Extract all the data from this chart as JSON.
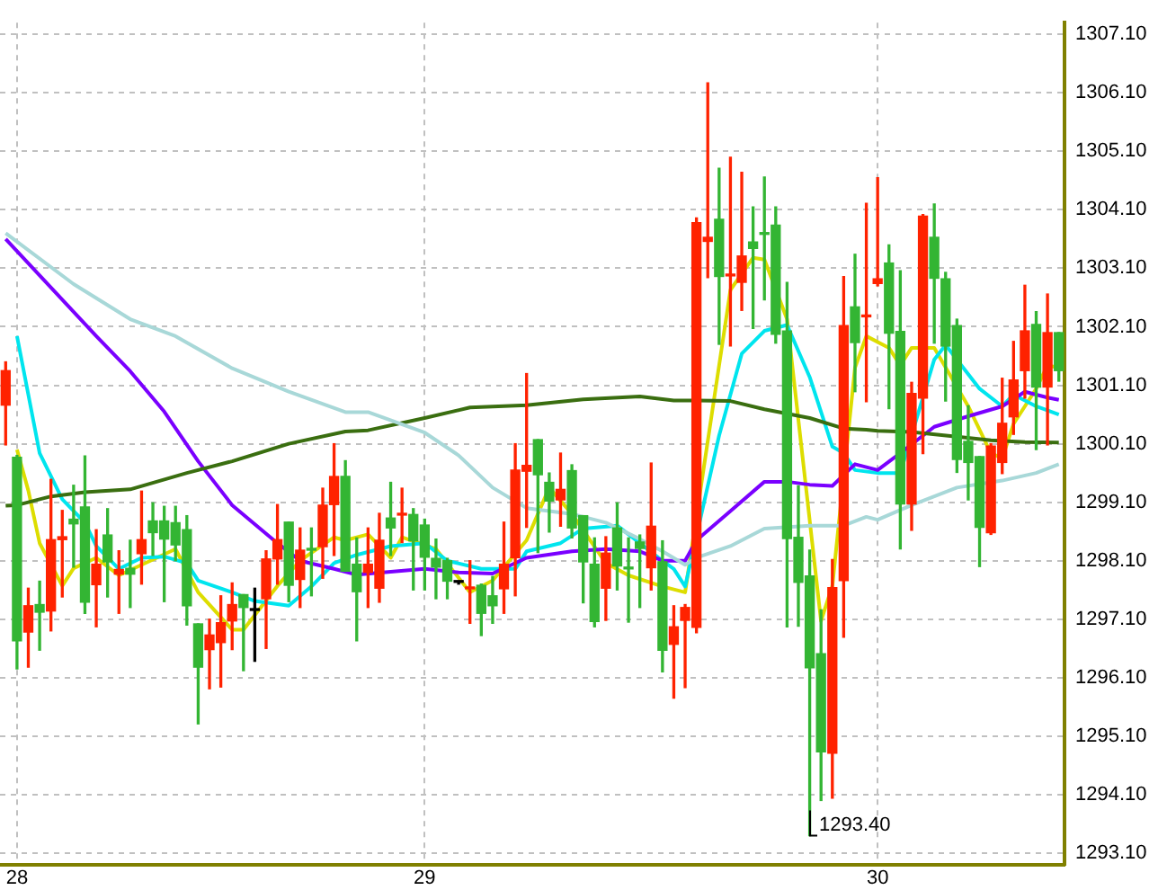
{
  "chart_data": {
    "type": "candlestick",
    "categories": [
      null,
      "28",
      null,
      null,
      null,
      null,
      null,
      null,
      null,
      null,
      null,
      null,
      null,
      null,
      null,
      null,
      null,
      null,
      null,
      null,
      null,
      null,
      null,
      null,
      null,
      null,
      null,
      null,
      null,
      null,
      null,
      null,
      null,
      null,
      null,
      null,
      null,
      "29",
      null,
      null,
      null,
      null,
      null,
      null,
      null,
      null,
      null,
      null,
      null,
      null,
      null,
      null,
      null,
      null,
      null,
      null,
      null,
      null,
      null,
      null,
      null,
      null,
      null,
      null,
      null,
      null,
      null,
      null,
      null,
      null,
      null,
      null,
      null,
      null,
      null,
      null,
      null,
      "30",
      null,
      null,
      null,
      null,
      null,
      null,
      null,
      null,
      null,
      null,
      null,
      null,
      null,
      null,
      null,
      null
    ],
    "ohlc": [
      [
        1300.76,
        1301.5,
        1300.08,
        1301.35
      ],
      [
        1299.87,
        1299.9,
        1296.25,
        1296.73
      ],
      [
        1296.88,
        1297.63,
        1296.28,
        1297.33
      ],
      [
        1297.35,
        1297.75,
        1296.57,
        1297.22
      ],
      [
        1297.24,
        1299.49,
        1296.9,
        1298.46
      ],
      [
        1298.46,
        1298.96,
        1297.48,
        1298.51
      ],
      [
        1298.81,
        1299.39,
        1297.99,
        1298.73
      ],
      [
        1299.02,
        1299.89,
        1297.2,
        1297.39
      ],
      [
        1297.69,
        1298.63,
        1296.97,
        1298.04
      ],
      [
        1298.54,
        1298.99,
        1297.48,
        1298.08
      ],
      [
        1297.87,
        1298.27,
        1297.2,
        1297.95
      ],
      [
        1297.97,
        1298.45,
        1297.3,
        1297.87
      ],
      [
        1298.22,
        1299.29,
        1297.7,
        1298.46
      ],
      [
        1298.78,
        1299.09,
        1298.19,
        1298.58
      ],
      [
        1298.78,
        1299.03,
        1297.4,
        1298.47
      ],
      [
        1298.75,
        1299.03,
        1298.1,
        1298.37
      ],
      [
        1298.63,
        1298.87,
        1297.0,
        1297.33
      ],
      [
        1297.02,
        1297.02,
        1295.31,
        1296.28
      ],
      [
        1296.58,
        1297.1,
        1295.91,
        1296.83
      ],
      [
        1296.7,
        1297.5,
        1295.94,
        1297.04
      ],
      [
        1297.07,
        1297.72,
        1296.58,
        1297.35
      ],
      [
        1297.52,
        1297.52,
        1296.22,
        1297.3
      ],
      [
        1297.25,
        1297.63,
        1296.38,
        1297.25
      ],
      [
        1297.45,
        1298.27,
        1296.6,
        1298.13
      ],
      [
        1298.13,
        1299.06,
        1297.7,
        1298.46
      ],
      [
        1298.76,
        1298.76,
        1297.4,
        1297.68
      ],
      [
        1297.78,
        1298.66,
        1297.3,
        1298.28
      ],
      [
        1298.3,
        1298.66,
        1297.5,
        1298.28
      ],
      [
        1298.34,
        1299.34,
        1297.8,
        1299.05
      ],
      [
        1299.06,
        1300.1,
        1298.19,
        1299.54
      ],
      [
        1299.54,
        1299.81,
        1297.92,
        1297.92
      ],
      [
        1298.04,
        1298.49,
        1296.73,
        1297.57
      ],
      [
        1297.9,
        1298.66,
        1297.3,
        1298.04
      ],
      [
        1297.63,
        1298.91,
        1297.39,
        1298.45
      ],
      [
        1298.83,
        1299.44,
        1298.19,
        1298.66
      ],
      [
        1298.88,
        1299.34,
        1298.41,
        1298.9
      ],
      [
        1298.89,
        1298.99,
        1297.6,
        1298.44
      ],
      [
        1298.71,
        1298.81,
        1297.6,
        1298.16
      ],
      [
        1298.14,
        1298.47,
        1297.45,
        1297.99
      ],
      [
        1298.1,
        1298.14,
        1297.45,
        1297.75
      ],
      [
        1297.73,
        1297.75,
        1297.7,
        1297.73
      ],
      [
        1297.62,
        1298.1,
        1297.03,
        1297.64
      ],
      [
        1297.68,
        1297.7,
        1296.82,
        1297.2
      ],
      [
        1297.5,
        1297.83,
        1297.03,
        1297.33
      ],
      [
        1297.62,
        1298.76,
        1297.2,
        1298.04
      ],
      [
        1298.15,
        1300.1,
        1297.5,
        1299.65
      ],
      [
        1299.63,
        1301.3,
        1298.67,
        1299.73
      ],
      [
        1300.17,
        1300.17,
        1298.24,
        1299.57
      ],
      [
        1299.44,
        1299.6,
        1298.59,
        1299.12
      ],
      [
        1299.14,
        1299.94,
        1298.69,
        1299.32
      ],
      [
        1299.64,
        1299.74,
        1298.49,
        1298.66
      ],
      [
        1298.87,
        1298.87,
        1297.38,
        1298.08
      ],
      [
        1298.04,
        1298.49,
        1296.97,
        1297.06
      ],
      [
        1297.63,
        1298.51,
        1297.08,
        1298.23
      ],
      [
        1298.66,
        1299.09,
        1297.6,
        1298.01
      ],
      [
        1297.97,
        1298.49,
        1297.05,
        1297.96
      ],
      [
        1298.42,
        1298.54,
        1297.3,
        1298.31
      ],
      [
        1297.98,
        1299.77,
        1297.6,
        1298.69
      ],
      [
        1298.08,
        1298.44,
        1296.2,
        1296.57
      ],
      [
        1296.67,
        1297.33,
        1295.75,
        1296.97
      ],
      [
        1297.08,
        1297.35,
        1295.93,
        1297.3
      ],
      [
        1296.96,
        1303.96,
        1296.87,
        1303.88
      ],
      [
        1303.56,
        1306.27,
        1302.94,
        1303.63
      ],
      [
        1303.94,
        1304.81,
        1301.8,
        1302.96
      ],
      [
        1302.97,
        1305.0,
        1301.77,
        1302.99
      ],
      [
        1302.86,
        1304.74,
        1302.38,
        1303.31
      ],
      [
        1303.55,
        1304.15,
        1302.07,
        1303.44
      ],
      [
        1303.7,
        1304.66,
        1302.56,
        1303.68
      ],
      [
        1303.84,
        1304.15,
        1301.82,
        1301.97
      ],
      [
        1302.03,
        1302.86,
        1296.97,
        1298.48
      ],
      [
        1298.5,
        1299.38,
        1296.98,
        1297.73
      ],
      [
        1297.84,
        1298.28,
        1293.4,
        1296.27
      ],
      [
        1296.51,
        1297.26,
        1294.0,
        1294.83
      ],
      [
        1294.81,
        1298.12,
        1294.04,
        1297.64
      ],
      [
        1297.76,
        1302.96,
        1296.79,
        1302.12
      ],
      [
        1302.44,
        1303.34,
        1300.99,
        1301.83
      ],
      [
        1302.27,
        1304.21,
        1300.82,
        1302.29
      ],
      [
        1302.84,
        1304.65,
        1302.8,
        1302.92
      ],
      [
        1303.19,
        1303.5,
        1300.7,
        1301.99
      ],
      [
        1302.02,
        1303.06,
        1298.3,
        1299.07
      ],
      [
        1299.07,
        1301.15,
        1298.62,
        1300.96
      ],
      [
        1300.88,
        1304.02,
        1299.93,
        1303.99
      ],
      [
        1303.63,
        1304.2,
        1301.82,
        1302.93
      ],
      [
        1302.92,
        1303.03,
        1300.83,
        1301.77
      ],
      [
        1302.12,
        1302.23,
        1299.61,
        1299.83
      ],
      [
        1300.14,
        1300.75,
        1299.14,
        1299.78
      ],
      [
        1299.88,
        1299.88,
        1298.0,
        1298.67
      ],
      [
        1298.58,
        1300.1,
        1298.55,
        1300.06
      ],
      [
        1299.78,
        1301.22,
        1299.59,
        1300.45
      ],
      [
        1300.56,
        1301.85,
        1300.26,
        1301.19
      ],
      [
        1301.35,
        1302.81,
        1300.88,
        1302.03
      ],
      [
        1302.14,
        1302.36,
        1300.0,
        1301.07
      ],
      [
        1301.07,
        1302.66,
        1300.08,
        1302.0
      ],
      [
        1302.0,
        1302.0,
        1301.17,
        1301.35
      ]
    ],
    "colors": [
      "#ff2200",
      "#33b533",
      "#ff2200",
      "#33b533",
      "#ff2200",
      "#ff2200",
      "#33b533",
      "#33b533",
      "#ff2200",
      "#33b533",
      "#ff2200",
      "#33b533",
      "#ff2200",
      "#33b533",
      "#33b533",
      "#33b533",
      "#33b533",
      "#33b533",
      "#ff2200",
      "#ff2200",
      "#ff2200",
      "#33b533",
      "#000000",
      "#ff2200",
      "#ff2200",
      "#33b533",
      "#ff2200",
      "#33b533",
      "#ff2200",
      "#ff2200",
      "#33b533",
      "#33b533",
      "#ff2200",
      "#ff2200",
      "#33b533",
      "#ff2200",
      "#33b533",
      "#33b533",
      "#33b533",
      "#33b533",
      "#000000",
      "#ff2200",
      "#33b533",
      "#33b533",
      "#ff2200",
      "#ff2200",
      "#ff2200",
      "#33b533",
      "#33b533",
      "#ff2200",
      "#33b533",
      "#33b533",
      "#33b533",
      "#ff2200",
      "#33b533",
      "#33b533",
      "#33b533",
      "#ff2200",
      "#33b533",
      "#ff2200",
      "#ff2200",
      "#ff2200",
      "#ff2200",
      "#33b533",
      "#ff2200",
      "#ff2200",
      "#33b533",
      "#33b533",
      "#33b533",
      "#33b533",
      "#33b533",
      "#33b533",
      "#33b533",
      "#ff2200",
      "#ff2200",
      "#33b533",
      "#ff2200",
      "#ff2200",
      "#33b533",
      "#33b533",
      "#ff2200",
      "#ff2200",
      "#33b533",
      "#33b533",
      "#33b533",
      "#33b533",
      "#33b533",
      "#ff2200",
      "#ff2200",
      "#ff2200",
      "#ff2200",
      "#33b533",
      "#ff2200",
      "#33b533"
    ],
    "series": [
      {
        "type": "line",
        "color": "#a8d8d8",
        "values": [
          1303.7,
          null,
          null,
          null,
          null,
          null,
          1302.83,
          null,
          null,
          null,
          null,
          1302.23,
          null,
          null,
          null,
          1301.94,
          null,
          null,
          null,
          null,
          1301.39,
          null,
          null,
          null,
          null,
          1300.99,
          null,
          null,
          null,
          null,
          1300.64,
          null,
          1300.64,
          null,
          null,
          null,
          null,
          1300.29,
          null,
          null,
          1299.9,
          null,
          null,
          1299.35,
          null,
          null,
          1299.0,
          null,
          null,
          null,
          1298.9,
          null,
          null,
          1298.75,
          null,
          null,
          1298.47,
          null,
          1298.26,
          null,
          1298.03,
          1298.15,
          null,
          null,
          1298.35,
          null,
          null,
          1298.65,
          null,
          null,
          null,
          1298.7,
          null,
          null,
          1298.7,
          null,
          1298.85,
          1298.8,
          null,
          null,
          1299.05,
          null,
          null,
          null,
          1299.35,
          null,
          null,
          null,
          1299.47,
          null,
          null,
          1299.6,
          null,
          1299.75
        ]
      },
      {
        "type": "line",
        "color": "#3a6e10",
        "values": [
          1299.04,
          1299.05,
          null,
          null,
          1299.2,
          null,
          null,
          1299.27,
          null,
          null,
          null,
          1299.32,
          null,
          null,
          null,
          null,
          1299.6,
          null,
          null,
          null,
          1299.8,
          null,
          null,
          null,
          null,
          1300.1,
          null,
          null,
          null,
          null,
          1300.31,
          null,
          1300.33,
          null,
          null,
          null,
          null,
          1300.54,
          null,
          null,
          null,
          1300.72,
          null,
          null,
          null,
          null,
          1300.76,
          null,
          null,
          null,
          null,
          1300.86,
          null,
          null,
          null,
          null,
          1300.91,
          null,
          null,
          1300.84,
          null,
          1300.84,
          null,
          null,
          1300.83,
          null,
          null,
          1300.69,
          null,
          null,
          null,
          1300.54,
          null,
          null,
          1300.36,
          null,
          1300.34,
          1300.32,
          null,
          null,
          1300.3,
          null,
          null,
          null,
          1300.22,
          null,
          null,
          1300.16,
          null,
          null,
          1300.13,
          null,
          null,
          1300.12
        ]
      },
      {
        "type": "line",
        "color": "#7a00ff",
        "values": [
          1303.6,
          null,
          null,
          null,
          null,
          null,
          null,
          null,
          1301.94,
          null,
          null,
          1301.34,
          null,
          null,
          1300.65,
          null,
          null,
          1299.8,
          null,
          null,
          1299.05,
          null,
          null,
          null,
          1298.4,
          null,
          1298.1,
          null,
          null,
          1297.96,
          null,
          1297.86,
          null,
          null,
          null,
          null,
          null,
          1297.96,
          null,
          null,
          1297.9,
          null,
          null,
          1297.88,
          null,
          null,
          1298.15,
          null,
          null,
          null,
          1298.26,
          null,
          null,
          1298.3,
          null,
          null,
          1298.26,
          null,
          1298.1,
          null,
          1298.1,
          1298.45,
          null,
          null,
          1298.95,
          null,
          null,
          1299.45,
          null,
          1299.45,
          null,
          1299.4,
          null,
          1299.38,
          null,
          1299.75,
          null,
          1299.65,
          null,
          1299.94,
          null,
          null,
          1300.39,
          null,
          null,
          1300.57,
          null,
          null,
          1300.74,
          null,
          1300.99,
          null,
          1300.89,
          1300.85
        ]
      },
      {
        "type": "line",
        "color": "#00e5ee",
        "values": [
          null,
          1301.94,
          1300.94,
          1299.94,
          null,
          1299.15,
          null,
          1298.75,
          1298.35,
          null,
          1297.96,
          null,
          1298.15,
          null,
          1298.17,
          null,
          1298.06,
          1297.76,
          null,
          null,
          1297.56,
          null,
          1297.41,
          null,
          null,
          1297.33,
          null,
          1297.66,
          null,
          1298.06,
          null,
          1298.2,
          null,
          null,
          1298.35,
          null,
          null,
          1298.4,
          null,
          1298.1,
          null,
          null,
          1297.96,
          null,
          null,
          1297.96,
          1298.26,
          null,
          null,
          1298.4,
          null,
          1298.65,
          null,
          null,
          1298.7,
          null,
          1298.4,
          null,
          1298.1,
          1297.96,
          1297.66,
          null,
          null,
          1300.24,
          null,
          1301.64,
          null,
          1302.03,
          null,
          1302.13,
          null,
          1301.24,
          null,
          1300.05,
          1299.94,
          1299.65,
          null,
          1299.6,
          null,
          1299.6,
          null,
          null,
          1301.54,
          1301.79,
          1301.54,
          null,
          1301.04,
          null,
          1300.74,
          1300.94,
          null,
          1300.74,
          null,
          1300.6
        ]
      },
      {
        "type": "line",
        "color": "#dddd00",
        "values": [
          null,
          1300.0,
          1299.3,
          1298.4,
          null,
          1297.67,
          1297.97,
          null,
          1298.15,
          null,
          1297.85,
          null,
          null,
          null,
          null,
          1298.3,
          null,
          1297.56,
          null,
          null,
          1296.92,
          1296.92,
          null,
          null,
          1297.67,
          null,
          1298.1,
          null,
          null,
          1298.5,
          1298.45,
          null,
          1298.55,
          null,
          1298.15,
          1298.5,
          null,
          null,
          1298.3,
          null,
          null,
          1297.56,
          null,
          1297.76,
          null,
          null,
          1298.45,
          null,
          1299.35,
          null,
          1298.9,
          null,
          null,
          1298.06,
          null,
          1297.85,
          null,
          null,
          1297.66,
          null,
          1297.56,
          null,
          null,
          1301.44,
          1302.73,
          null,
          1303.28,
          1303.25,
          null,
          1302.23,
          null,
          null,
          1297.07,
          1297.67,
          null,
          1301.4,
          1301.94,
          null,
          1301.74,
          1301.44,
          1301.74,
          null,
          1301.74,
          null,
          null,
          1300.74,
          null,
          1299.94,
          1299.85,
          1300.44,
          null,
          1301.04,
          1301.44,
          1301.4
        ]
      }
    ],
    "ylim": [
      1292.9,
      1307.3
    ],
    "yticks": [
      {
        "value": 1293.1,
        "label": "1293.10"
      },
      {
        "value": 1294.1,
        "label": "1294.10"
      },
      {
        "value": 1295.1,
        "label": "1295.10"
      },
      {
        "value": 1296.1,
        "label": "1296.10"
      },
      {
        "value": 1297.1,
        "label": "1297.10"
      },
      {
        "value": 1298.1,
        "label": "1298.10"
      },
      {
        "value": 1299.1,
        "label": "1299.10"
      },
      {
        "value": 1300.1,
        "label": "1300.10"
      },
      {
        "value": 1301.1,
        "label": "1301.10"
      },
      {
        "value": 1302.1,
        "label": "1302.10"
      },
      {
        "value": 1303.1,
        "label": "1303.10"
      },
      {
        "value": 1304.1,
        "label": "1304.10"
      },
      {
        "value": 1305.1,
        "label": "1305.10"
      },
      {
        "value": 1306.1,
        "label": "1306.10"
      },
      {
        "value": 1307.1,
        "label": "1307.10"
      }
    ],
    "grid": true,
    "marker": "none",
    "line_style": "solid",
    "annotations": [
      "1293.40"
    ]
  }
}
